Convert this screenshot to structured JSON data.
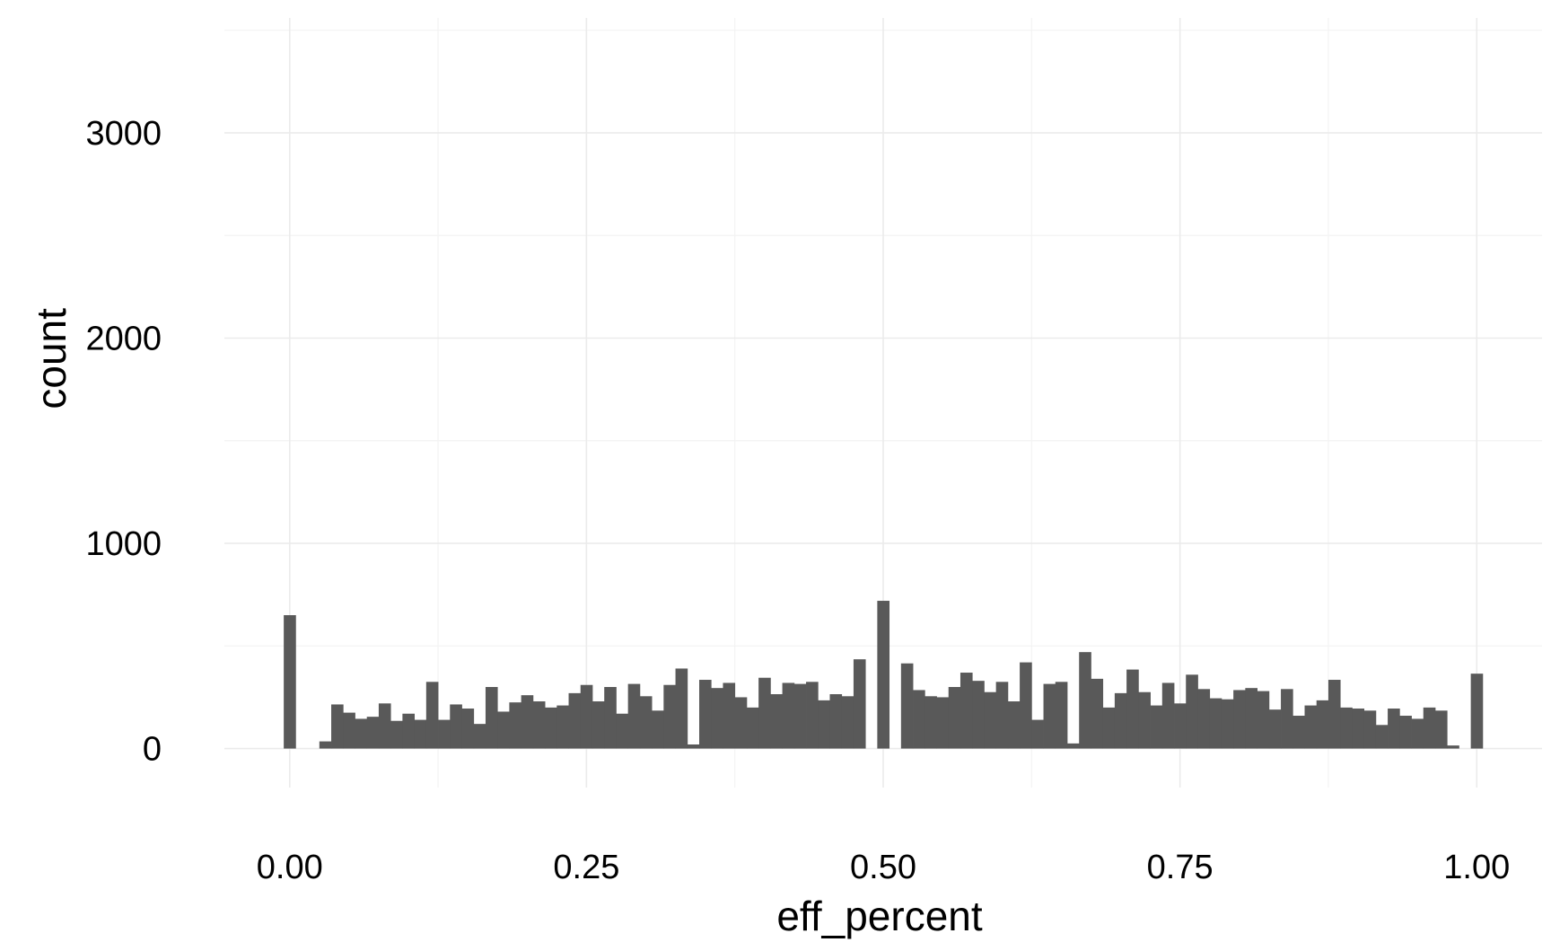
{
  "chart_data": {
    "type": "bar",
    "subtype": "histogram",
    "title": "",
    "xlabel": "eff_percent",
    "ylabel": "count",
    "xlim": [
      -0.055,
      1.055
    ],
    "ylim": [
      -190,
      3560
    ],
    "x_ticks": [
      0.0,
      0.25,
      0.5,
      0.75,
      1.0
    ],
    "x_tick_labels": [
      "0.00",
      "0.25",
      "0.50",
      "0.75",
      "1.00"
    ],
    "y_ticks": [
      0,
      1000,
      2000,
      3000
    ],
    "y_tick_labels": [
      "0",
      "1000",
      "2000",
      "3000"
    ],
    "grid": true,
    "bar_color": "#595959",
    "bin_width": 0.01,
    "bins": {
      "x": [
        0.0,
        0.01,
        0.02,
        0.03,
        0.04,
        0.05,
        0.06,
        0.07,
        0.08,
        0.09,
        0.1,
        0.11,
        0.12,
        0.13,
        0.14,
        0.15,
        0.16,
        0.17,
        0.18,
        0.19,
        0.2,
        0.21,
        0.22,
        0.23,
        0.24,
        0.25,
        0.26,
        0.27,
        0.28,
        0.29,
        0.3,
        0.31,
        0.32,
        0.33,
        0.34,
        0.35,
        0.36,
        0.37,
        0.38,
        0.39,
        0.4,
        0.41,
        0.42,
        0.43,
        0.44,
        0.45,
        0.46,
        0.47,
        0.48,
        0.49,
        0.5,
        0.51,
        0.52,
        0.53,
        0.54,
        0.55,
        0.56,
        0.57,
        0.58,
        0.59,
        0.6,
        0.61,
        0.62,
        0.63,
        0.64,
        0.65,
        0.66,
        0.67,
        0.68,
        0.69,
        0.7,
        0.71,
        0.72,
        0.73,
        0.74,
        0.75,
        0.76,
        0.77,
        0.78,
        0.79,
        0.8,
        0.81,
        0.82,
        0.83,
        0.84,
        0.85,
        0.86,
        0.87,
        0.88,
        0.89,
        0.9,
        0.91,
        0.92,
        0.93,
        0.94,
        0.95,
        0.96,
        0.97,
        0.98,
        0.99,
        1.0
      ],
      "counts": [
        650,
        0,
        0,
        35,
        215,
        175,
        145,
        155,
        220,
        135,
        170,
        140,
        325,
        140,
        215,
        195,
        120,
        300,
        180,
        225,
        260,
        230,
        200,
        210,
        270,
        310,
        230,
        300,
        170,
        315,
        255,
        185,
        310,
        390,
        20,
        335,
        295,
        320,
        250,
        200,
        345,
        265,
        320,
        315,
        325,
        235,
        265,
        255,
        435,
        0,
        720,
        0,
        415,
        285,
        255,
        250,
        300,
        370,
        330,
        275,
        325,
        230,
        420,
        140,
        315,
        325,
        25,
        470,
        340,
        200,
        270,
        385,
        275,
        210,
        320,
        220,
        360,
        290,
        245,
        240,
        285,
        295,
        280,
        190,
        290,
        160,
        210,
        235,
        335,
        200,
        195,
        185,
        115,
        195,
        160,
        145,
        200,
        185,
        15,
        0,
        365
      ]
    }
  }
}
